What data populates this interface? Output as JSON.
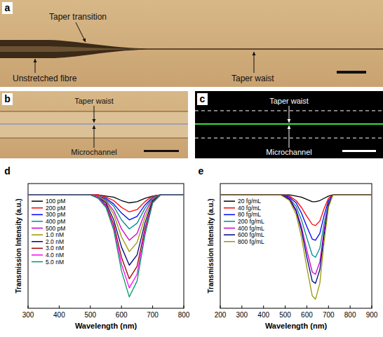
{
  "panels": [
    {
      "letter": "a",
      "labels": [
        "Taper transition",
        "Unstretched fibre",
        "Taper waist"
      ]
    },
    {
      "letter": "b",
      "labels": [
        "Taper waist",
        "Microchannel"
      ]
    },
    {
      "letter": "c",
      "labels": [
        "Taper waist",
        "Microchannel"
      ]
    }
  ],
  "chart_data": [
    {
      "type": "line",
      "panel_label": "d",
      "x_label": "Wavelength (nm)",
      "y_label": "Transmission Intensity (a.u.)",
      "x": [
        300,
        500,
        525,
        550,
        575,
        600,
        625,
        650,
        675,
        700,
        725,
        800
      ],
      "xlim": [
        300,
        800
      ],
      "xticks": [
        300,
        400,
        500,
        600,
        700,
        800
      ],
      "ylim": [
        0,
        1.1
      ],
      "tick_labels": "x",
      "grid": false,
      "legend": "upper left",
      "series": [
        {
          "name": "100 pM",
          "color": "#000000",
          "values": [
            1,
            1,
            1,
            0.99,
            0.98,
            0.95,
            0.93,
            0.94,
            0.97,
            0.99,
            1,
            1
          ]
        },
        {
          "name": "200 pM",
          "color": "#ff0000",
          "values": [
            1,
            1,
            1,
            0.98,
            0.95,
            0.89,
            0.85,
            0.87,
            0.94,
            0.99,
            1,
            1
          ]
        },
        {
          "name": "300 pM",
          "color": "#0000ff",
          "values": [
            1,
            1,
            0.99,
            0.97,
            0.92,
            0.84,
            0.78,
            0.81,
            0.91,
            0.98,
            1,
            1
          ]
        },
        {
          "name": "400 pM",
          "color": "#008b8b",
          "values": [
            1,
            1,
            0.99,
            0.96,
            0.9,
            0.78,
            0.7,
            0.75,
            0.88,
            0.98,
            1,
            1
          ]
        },
        {
          "name": "500 pM",
          "color": "#cc00cc",
          "values": [
            1,
            1,
            0.99,
            0.95,
            0.86,
            0.7,
            0.6,
            0.66,
            0.84,
            0.97,
            1,
            1
          ]
        },
        {
          "name": "1.0 nM",
          "color": "#999900",
          "values": [
            1,
            1,
            0.99,
            0.94,
            0.83,
            0.63,
            0.5,
            0.58,
            0.8,
            0.96,
            1,
            1
          ]
        },
        {
          "name": "2.0 nM",
          "color": "#000080",
          "values": [
            1,
            1,
            0.98,
            0.93,
            0.78,
            0.54,
            0.38,
            0.47,
            0.75,
            0.95,
            1,
            1
          ]
        },
        {
          "name": "3.0 nM",
          "color": "#990000",
          "values": [
            1,
            1,
            0.98,
            0.91,
            0.74,
            0.45,
            0.26,
            0.37,
            0.7,
            0.94,
            1,
            1
          ]
        },
        {
          "name": "4.0 nM",
          "color": "#ff00ff",
          "values": [
            1,
            1,
            0.98,
            0.9,
            0.71,
            0.39,
            0.18,
            0.3,
            0.67,
            0.93,
            1,
            1
          ]
        },
        {
          "name": "5.0 nM",
          "color": "#009966",
          "values": [
            1,
            1,
            0.97,
            0.89,
            0.69,
            0.33,
            0.1,
            0.24,
            0.64,
            0.93,
            1,
            1
          ]
        }
      ]
    },
    {
      "type": "line",
      "panel_label": "e",
      "x_label": "Wavelength (nm)",
      "y_label": "Transmission Intensity (a.u.)",
      "x": [
        200,
        480,
        520,
        550,
        575,
        600,
        625,
        640,
        660,
        680,
        700,
        720,
        900
      ],
      "xlim": [
        200,
        900
      ],
      "xticks": [
        200,
        300,
        400,
        500,
        600,
        700,
        800,
        900
      ],
      "ylim": [
        0,
        1.1
      ],
      "tick_labels": "x",
      "grid": false,
      "legend": "upper left",
      "series": [
        {
          "name": "20 fg/mL",
          "color": "#000000",
          "values": [
            1,
            1,
            1,
            0.99,
            0.98,
            0.96,
            0.94,
            0.94,
            0.95,
            0.97,
            0.99,
            1,
            1
          ]
        },
        {
          "name": "40 fg/mL",
          "color": "#ff0000",
          "values": [
            1,
            1,
            0.99,
            0.95,
            0.89,
            0.81,
            0.74,
            0.73,
            0.77,
            0.88,
            0.97,
            1,
            1
          ]
        },
        {
          "name": "80 fg/mL",
          "color": "#0000ff",
          "values": [
            1,
            1,
            0.98,
            0.93,
            0.84,
            0.72,
            0.61,
            0.6,
            0.66,
            0.82,
            0.95,
            1,
            1
          ]
        },
        {
          "name": "200 fg/mL",
          "color": "#008b8b",
          "values": [
            1,
            1,
            0.97,
            0.9,
            0.78,
            0.62,
            0.47,
            0.45,
            0.53,
            0.75,
            0.93,
            1,
            1
          ]
        },
        {
          "name": "400 fg/mL",
          "color": "#cc00cc",
          "values": [
            1,
            1,
            0.97,
            0.87,
            0.72,
            0.51,
            0.32,
            0.3,
            0.41,
            0.69,
            0.92,
            1,
            1
          ]
        },
        {
          "name": "600 fg/mL",
          "color": "#000080",
          "values": [
            1,
            1,
            0.96,
            0.86,
            0.69,
            0.45,
            0.24,
            0.22,
            0.34,
            0.65,
            0.91,
            1,
            1
          ]
        },
        {
          "name": "800 fg/mL",
          "color": "#999900",
          "values": [
            1,
            1,
            0.95,
            0.83,
            0.63,
            0.36,
            0.11,
            0.08,
            0.22,
            0.59,
            0.89,
            1,
            1
          ]
        }
      ]
    }
  ]
}
